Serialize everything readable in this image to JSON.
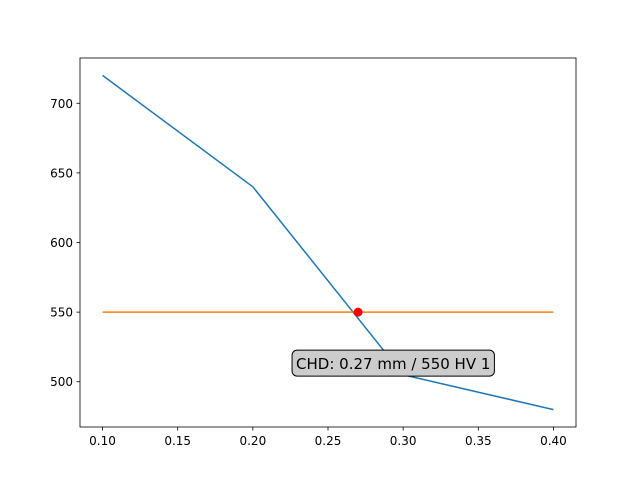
{
  "chart_data": {
    "type": "line",
    "title": "",
    "xlabel": "",
    "ylabel": "",
    "xlim": [
      0.085,
      0.415
    ],
    "ylim": [
      467.5,
      732.5
    ],
    "xticks": [
      0.1,
      0.15,
      0.2,
      0.25,
      0.3,
      0.35,
      0.4
    ],
    "yticks": [
      500,
      550,
      600,
      650,
      700
    ],
    "xtick_labels": [
      "0.10",
      "0.15",
      "0.20",
      "0.25",
      "0.30",
      "0.35",
      "0.40"
    ],
    "ytick_labels": [
      "500",
      "550",
      "600",
      "650",
      "700"
    ],
    "grid": false,
    "legend": "none",
    "series": [
      {
        "color": "#1f77b4",
        "points": [
          [
            0.1,
            720
          ],
          [
            0.2,
            640
          ],
          [
            0.3,
            505
          ],
          [
            0.4,
            480
          ]
        ]
      },
      {
        "color": "#ff7f0e",
        "points": [
          [
            0.1,
            550
          ],
          [
            0.4,
            550
          ]
        ]
      }
    ],
    "marker": {
      "x": 0.27,
      "y": 550,
      "color": "#ff0000"
    },
    "annotation": {
      "text": "CHD: 0.27 mm / 550 HV 1",
      "x": 0.27,
      "y": 550,
      "box_color": "#cccccc"
    }
  }
}
